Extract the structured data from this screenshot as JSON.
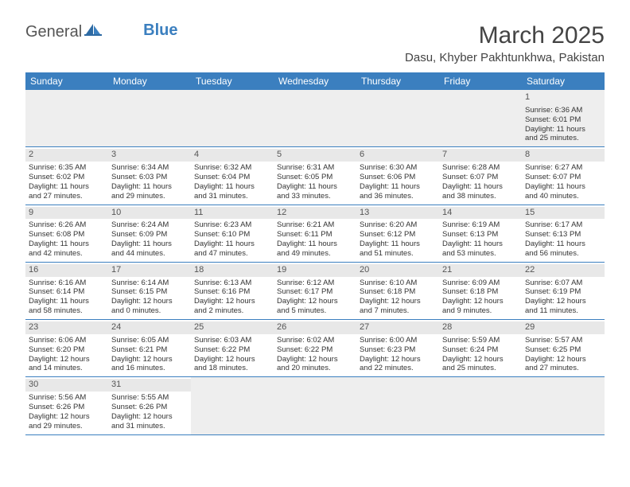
{
  "logo": {
    "text1": "General",
    "text2": "Blue"
  },
  "title": "March 2025",
  "location": "Dasu, Khyber Pakhtunkhwa, Pakistan",
  "colors": {
    "header_bg": "#3b7fbf",
    "header_text": "#ffffff",
    "cell_border": "#3b7fbf",
    "daynum_bg": "#e8e8e8",
    "empty_bg": "#eeeeee",
    "text": "#333333"
  },
  "day_names": [
    "Sunday",
    "Monday",
    "Tuesday",
    "Wednesday",
    "Thursday",
    "Friday",
    "Saturday"
  ],
  "weeks": [
    [
      null,
      null,
      null,
      null,
      null,
      null,
      {
        "n": "1",
        "sr": "Sunrise: 6:36 AM",
        "ss": "Sunset: 6:01 PM",
        "dl1": "Daylight: 11 hours",
        "dl2": "and 25 minutes."
      }
    ],
    [
      {
        "n": "2",
        "sr": "Sunrise: 6:35 AM",
        "ss": "Sunset: 6:02 PM",
        "dl1": "Daylight: 11 hours",
        "dl2": "and 27 minutes."
      },
      {
        "n": "3",
        "sr": "Sunrise: 6:34 AM",
        "ss": "Sunset: 6:03 PM",
        "dl1": "Daylight: 11 hours",
        "dl2": "and 29 minutes."
      },
      {
        "n": "4",
        "sr": "Sunrise: 6:32 AM",
        "ss": "Sunset: 6:04 PM",
        "dl1": "Daylight: 11 hours",
        "dl2": "and 31 minutes."
      },
      {
        "n": "5",
        "sr": "Sunrise: 6:31 AM",
        "ss": "Sunset: 6:05 PM",
        "dl1": "Daylight: 11 hours",
        "dl2": "and 33 minutes."
      },
      {
        "n": "6",
        "sr": "Sunrise: 6:30 AM",
        "ss": "Sunset: 6:06 PM",
        "dl1": "Daylight: 11 hours",
        "dl2": "and 36 minutes."
      },
      {
        "n": "7",
        "sr": "Sunrise: 6:28 AM",
        "ss": "Sunset: 6:07 PM",
        "dl1": "Daylight: 11 hours",
        "dl2": "and 38 minutes."
      },
      {
        "n": "8",
        "sr": "Sunrise: 6:27 AM",
        "ss": "Sunset: 6:07 PM",
        "dl1": "Daylight: 11 hours",
        "dl2": "and 40 minutes."
      }
    ],
    [
      {
        "n": "9",
        "sr": "Sunrise: 6:26 AM",
        "ss": "Sunset: 6:08 PM",
        "dl1": "Daylight: 11 hours",
        "dl2": "and 42 minutes."
      },
      {
        "n": "10",
        "sr": "Sunrise: 6:24 AM",
        "ss": "Sunset: 6:09 PM",
        "dl1": "Daylight: 11 hours",
        "dl2": "and 44 minutes."
      },
      {
        "n": "11",
        "sr": "Sunrise: 6:23 AM",
        "ss": "Sunset: 6:10 PM",
        "dl1": "Daylight: 11 hours",
        "dl2": "and 47 minutes."
      },
      {
        "n": "12",
        "sr": "Sunrise: 6:21 AM",
        "ss": "Sunset: 6:11 PM",
        "dl1": "Daylight: 11 hours",
        "dl2": "and 49 minutes."
      },
      {
        "n": "13",
        "sr": "Sunrise: 6:20 AM",
        "ss": "Sunset: 6:12 PM",
        "dl1": "Daylight: 11 hours",
        "dl2": "and 51 minutes."
      },
      {
        "n": "14",
        "sr": "Sunrise: 6:19 AM",
        "ss": "Sunset: 6:13 PM",
        "dl1": "Daylight: 11 hours",
        "dl2": "and 53 minutes."
      },
      {
        "n": "15",
        "sr": "Sunrise: 6:17 AM",
        "ss": "Sunset: 6:13 PM",
        "dl1": "Daylight: 11 hours",
        "dl2": "and 56 minutes."
      }
    ],
    [
      {
        "n": "16",
        "sr": "Sunrise: 6:16 AM",
        "ss": "Sunset: 6:14 PM",
        "dl1": "Daylight: 11 hours",
        "dl2": "and 58 minutes."
      },
      {
        "n": "17",
        "sr": "Sunrise: 6:14 AM",
        "ss": "Sunset: 6:15 PM",
        "dl1": "Daylight: 12 hours",
        "dl2": "and 0 minutes."
      },
      {
        "n": "18",
        "sr": "Sunrise: 6:13 AM",
        "ss": "Sunset: 6:16 PM",
        "dl1": "Daylight: 12 hours",
        "dl2": "and 2 minutes."
      },
      {
        "n": "19",
        "sr": "Sunrise: 6:12 AM",
        "ss": "Sunset: 6:17 PM",
        "dl1": "Daylight: 12 hours",
        "dl2": "and 5 minutes."
      },
      {
        "n": "20",
        "sr": "Sunrise: 6:10 AM",
        "ss": "Sunset: 6:18 PM",
        "dl1": "Daylight: 12 hours",
        "dl2": "and 7 minutes."
      },
      {
        "n": "21",
        "sr": "Sunrise: 6:09 AM",
        "ss": "Sunset: 6:18 PM",
        "dl1": "Daylight: 12 hours",
        "dl2": "and 9 minutes."
      },
      {
        "n": "22",
        "sr": "Sunrise: 6:07 AM",
        "ss": "Sunset: 6:19 PM",
        "dl1": "Daylight: 12 hours",
        "dl2": "and 11 minutes."
      }
    ],
    [
      {
        "n": "23",
        "sr": "Sunrise: 6:06 AM",
        "ss": "Sunset: 6:20 PM",
        "dl1": "Daylight: 12 hours",
        "dl2": "and 14 minutes."
      },
      {
        "n": "24",
        "sr": "Sunrise: 6:05 AM",
        "ss": "Sunset: 6:21 PM",
        "dl1": "Daylight: 12 hours",
        "dl2": "and 16 minutes."
      },
      {
        "n": "25",
        "sr": "Sunrise: 6:03 AM",
        "ss": "Sunset: 6:22 PM",
        "dl1": "Daylight: 12 hours",
        "dl2": "and 18 minutes."
      },
      {
        "n": "26",
        "sr": "Sunrise: 6:02 AM",
        "ss": "Sunset: 6:22 PM",
        "dl1": "Daylight: 12 hours",
        "dl2": "and 20 minutes."
      },
      {
        "n": "27",
        "sr": "Sunrise: 6:00 AM",
        "ss": "Sunset: 6:23 PM",
        "dl1": "Daylight: 12 hours",
        "dl2": "and 22 minutes."
      },
      {
        "n": "28",
        "sr": "Sunrise: 5:59 AM",
        "ss": "Sunset: 6:24 PM",
        "dl1": "Daylight: 12 hours",
        "dl2": "and 25 minutes."
      },
      {
        "n": "29",
        "sr": "Sunrise: 5:57 AM",
        "ss": "Sunset: 6:25 PM",
        "dl1": "Daylight: 12 hours",
        "dl2": "and 27 minutes."
      }
    ],
    [
      {
        "n": "30",
        "sr": "Sunrise: 5:56 AM",
        "ss": "Sunset: 6:26 PM",
        "dl1": "Daylight: 12 hours",
        "dl2": "and 29 minutes."
      },
      {
        "n": "31",
        "sr": "Sunrise: 5:55 AM",
        "ss": "Sunset: 6:26 PM",
        "dl1": "Daylight: 12 hours",
        "dl2": "and 31 minutes."
      },
      null,
      null,
      null,
      null,
      null
    ]
  ]
}
